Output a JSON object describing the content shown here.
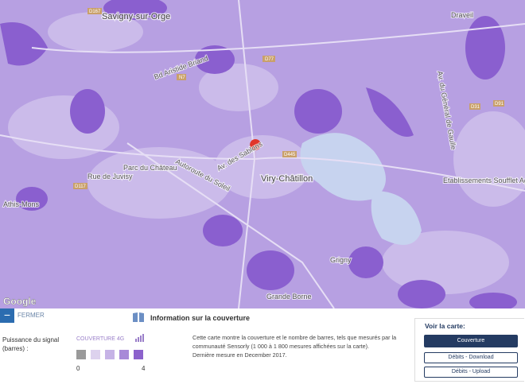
{
  "map": {
    "places": [
      "Savigny-sur-Orge",
      "Viry-Châtillon",
      "Parc du Château",
      "Etablissements Soufflet Agricultures",
      "Draveil",
      "Grande Borne",
      "Grigny",
      "Athis-Mons"
    ],
    "streets": [
      "Autoroute du Soleil",
      "Av. des Sablons",
      "Rue de Juvisy",
      "Bd Aristide Briand",
      "Av. du Général de Gaulle"
    ],
    "roads": [
      "D167",
      "D77",
      "D445",
      "N7",
      "D91",
      "D117",
      "D31"
    ],
    "attribution": "Google"
  },
  "panel": {
    "close": "FERMER",
    "legend": {
      "label": "Puissance du signal (barres) :",
      "title": "COUVERTURE 4G",
      "scale_min": 0,
      "scale_max": 4
    },
    "info": {
      "title": "Information sur la couverture",
      "text": "Cette carte montre la couverture et le nombre de barres, tels que mesurés par la communauté Sensorly (1 000 à 1 800 mesures affichées sur la carte).",
      "last": "Dernière mesure en December 2017."
    },
    "view": {
      "title": "Voir la carte:",
      "buttons": [
        "Couverture",
        "Débits - Download",
        "Débits - Upload"
      ]
    }
  }
}
